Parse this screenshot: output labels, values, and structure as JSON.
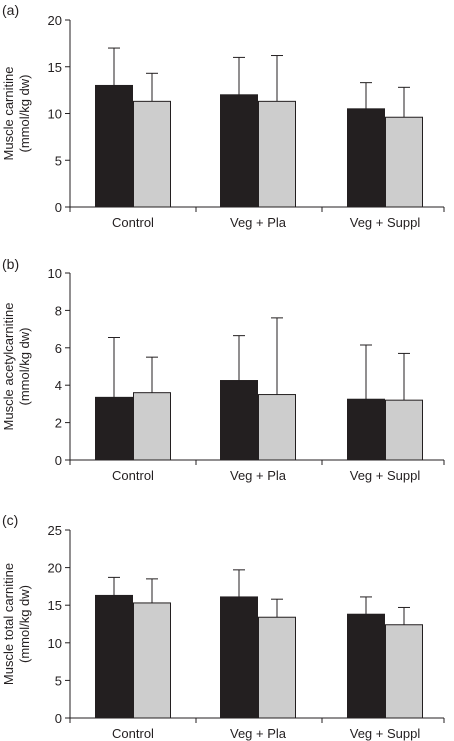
{
  "colors": {
    "series1": "#231f20",
    "series2": "#cdcdcd",
    "axis": "#231f20"
  },
  "chart_data": [
    {
      "panel_label": "(a)",
      "type": "bar",
      "ylabel_line1": "Muscle carnitine",
      "ylabel_line2": "(mmol/kg dw)",
      "ylim": [
        0,
        20
      ],
      "yticks": [
        0,
        5,
        10,
        15,
        20
      ],
      "categories": [
        "Control",
        "Veg + Pla",
        "Veg + Suppl"
      ],
      "series": [
        {
          "values": [
            13.0,
            12.0,
            10.5
          ],
          "errors": [
            4.0,
            4.0,
            2.8
          ]
        },
        {
          "values": [
            11.3,
            11.3,
            9.6
          ],
          "errors": [
            3.0,
            4.9,
            3.2
          ]
        }
      ]
    },
    {
      "panel_label": "(b)",
      "type": "bar",
      "ylabel_line1": "Muscle acetylcarnitine",
      "ylabel_line2": "(mmol/kg dw)",
      "ylim": [
        0,
        10
      ],
      "yticks": [
        0,
        2,
        4,
        6,
        8,
        10
      ],
      "categories": [
        "Control",
        "Veg + Pla",
        "Veg + Suppl"
      ],
      "series": [
        {
          "values": [
            3.35,
            4.25,
            3.25
          ],
          "errors": [
            3.2,
            2.4,
            2.9
          ]
        },
        {
          "values": [
            3.6,
            3.5,
            3.2
          ],
          "errors": [
            1.9,
            4.1,
            2.5
          ]
        }
      ]
    },
    {
      "panel_label": "(c)",
      "type": "bar",
      "ylabel_line1": "Muscle total carnitine",
      "ylabel_line2": "(mmol/kg dw)",
      "ylim": [
        0,
        25
      ],
      "yticks": [
        0,
        5,
        10,
        15,
        20,
        25
      ],
      "categories": [
        "Control",
        "Veg + Pla",
        "Veg + Suppl"
      ],
      "series": [
        {
          "values": [
            16.3,
            16.1,
            13.8
          ],
          "errors": [
            2.4,
            3.6,
            2.3
          ]
        },
        {
          "values": [
            15.3,
            13.4,
            12.4
          ],
          "errors": [
            3.2,
            2.4,
            2.3
          ]
        }
      ]
    }
  ]
}
